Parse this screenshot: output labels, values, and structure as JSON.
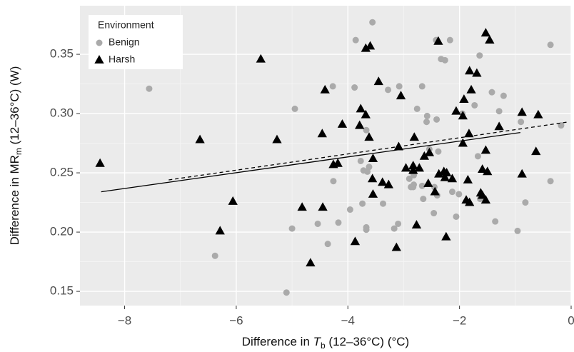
{
  "chart_data": {
    "type": "scatter",
    "x_label": {
      "text": "Difference in ",
      "var": "T",
      "sub": "b",
      "rest": " (12–36°C) (°C)"
    },
    "y_label": {
      "text": "Difference in MR",
      "sub": "m",
      "rest": " (12–36°C) (W)"
    },
    "xlim": [
      -8.8,
      0
    ],
    "ylim": [
      0.138,
      0.391
    ],
    "xticks": [
      {
        "value": -8,
        "label": "−8"
      },
      {
        "value": -6,
        "label": "−6"
      },
      {
        "value": -4,
        "label": "−4"
      },
      {
        "value": -2,
        "label": "−2"
      },
      0
    ],
    "yticks": [
      0.15,
      0.2,
      0.25,
      0.3,
      0.35
    ],
    "yticks_labels": [
      "0.15",
      "0.20",
      "0.25",
      "0.30",
      "0.35"
    ],
    "grid": true,
    "legend": {
      "title": "Environment",
      "position": "top-left"
    },
    "series": [
      {
        "name": "Benign",
        "color": "#aaaaaa",
        "marker": "circle",
        "x": [
          -7.56,
          -6.38,
          -4.95,
          -5.0,
          -5.1,
          -4.54,
          -4.36,
          -4.26,
          -4.27,
          -3.96,
          -4.17,
          -3.86,
          -3.88,
          -3.77,
          -3.56,
          -3.67,
          -3.62,
          -3.67,
          -3.65,
          -3.74,
          -3.72,
          -3.67,
          -3.37,
          -3.28,
          -3.17,
          -3.08,
          -3.1,
          -2.9,
          -2.87,
          -2.85,
          -2.83,
          -2.82,
          -2.82,
          -2.76,
          -2.67,
          -2.67,
          -2.65,
          -2.59,
          -2.58,
          -2.54,
          -2.46,
          -2.45,
          -2.42,
          -2.41,
          -2.4,
          -2.38,
          -2.33,
          -2.26,
          -2.17,
          -2.13,
          -2.06,
          -2.01,
          -1.95,
          -1.73,
          -1.64,
          -1.67,
          -1.63,
          -1.42,
          -1.36,
          -1.29,
          -1.21,
          -0.96,
          -0.9,
          -0.82,
          -0.37,
          -0.37,
          -0.18
        ],
        "values": [
          0.321,
          0.18,
          0.304,
          0.203,
          0.149,
          0.207,
          0.19,
          0.243,
          0.323,
          0.219,
          0.208,
          0.362,
          0.322,
          0.26,
          0.377,
          0.202,
          0.255,
          0.286,
          0.251,
          0.224,
          0.252,
          0.204,
          0.224,
          0.32,
          0.203,
          0.323,
          0.207,
          0.245,
          0.238,
          0.251,
          0.238,
          0.24,
          0.248,
          0.304,
          0.323,
          0.239,
          0.228,
          0.293,
          0.298,
          0.27,
          0.216,
          0.238,
          0.362,
          0.295,
          0.231,
          0.268,
          0.346,
          0.345,
          0.362,
          0.234,
          0.213,
          0.232,
          0.3,
          0.307,
          0.349,
          0.264,
          0.228,
          0.318,
          0.209,
          0.302,
          0.315,
          0.201,
          0.293,
          0.225,
          0.358,
          0.243,
          0.29
        ]
      },
      {
        "name": "Harsh",
        "color": "#000000",
        "marker": "triangle",
        "x": [
          -8.44,
          -6.65,
          -6.29,
          -6.06,
          -5.56,
          -5.27,
          -4.82,
          -4.67,
          -4.45,
          -4.41,
          -4.46,
          -4.26,
          -4.18,
          -4.1,
          -3.87,
          -3.79,
          -3.77,
          -3.68,
          -3.68,
          -3.6,
          -3.62,
          -3.56,
          -3.55,
          -3.55,
          -3.45,
          -3.38,
          -3.27,
          -3.05,
          -3.09,
          -3.13,
          -2.96,
          -2.83,
          -2.83,
          -2.77,
          -2.81,
          -2.72,
          -2.63,
          -2.56,
          -2.54,
          -2.44,
          -2.37,
          -2.38,
          -2.28,
          -2.26,
          -2.23,
          -2.24,
          -2.13,
          -2.06,
          -1.94,
          -1.94,
          -1.92,
          -1.88,
          -1.85,
          -1.83,
          -1.82,
          -1.79,
          -1.82,
          -1.69,
          -1.59,
          -1.53,
          -1.62,
          -1.59,
          -1.53,
          -1.5,
          -1.29,
          -1.53,
          -1.46,
          -0.88,
          -0.88,
          -0.63,
          -0.59
        ],
        "values": [
          0.258,
          0.278,
          0.201,
          0.226,
          0.346,
          0.278,
          0.221,
          0.174,
          0.221,
          0.32,
          0.283,
          0.257,
          0.258,
          0.291,
          0.192,
          0.29,
          0.304,
          0.299,
          0.355,
          0.357,
          0.28,
          0.245,
          0.262,
          0.232,
          0.327,
          0.242,
          0.24,
          0.315,
          0.272,
          0.187,
          0.254,
          0.252,
          0.256,
          0.206,
          0.28,
          0.254,
          0.264,
          0.241,
          0.267,
          0.234,
          0.249,
          0.361,
          0.251,
          0.246,
          0.25,
          0.196,
          0.245,
          0.302,
          0.298,
          0.275,
          0.312,
          0.227,
          0.244,
          0.283,
          0.336,
          0.32,
          0.225,
          0.334,
          0.253,
          0.269,
          0.233,
          0.231,
          0.227,
          0.251,
          0.289,
          0.368,
          0.362,
          0.249,
          0.301,
          0.268,
          0.299
        ]
      }
    ],
    "fits": [
      {
        "style": "solid",
        "x": [
          -8.42,
          -0.91
        ],
        "y": [
          0.234,
          0.284
        ]
      },
      {
        "style": "dashed",
        "x": [
          -7.21,
          -0.04
        ],
        "y": [
          0.244,
          0.293
        ]
      }
    ]
  }
}
